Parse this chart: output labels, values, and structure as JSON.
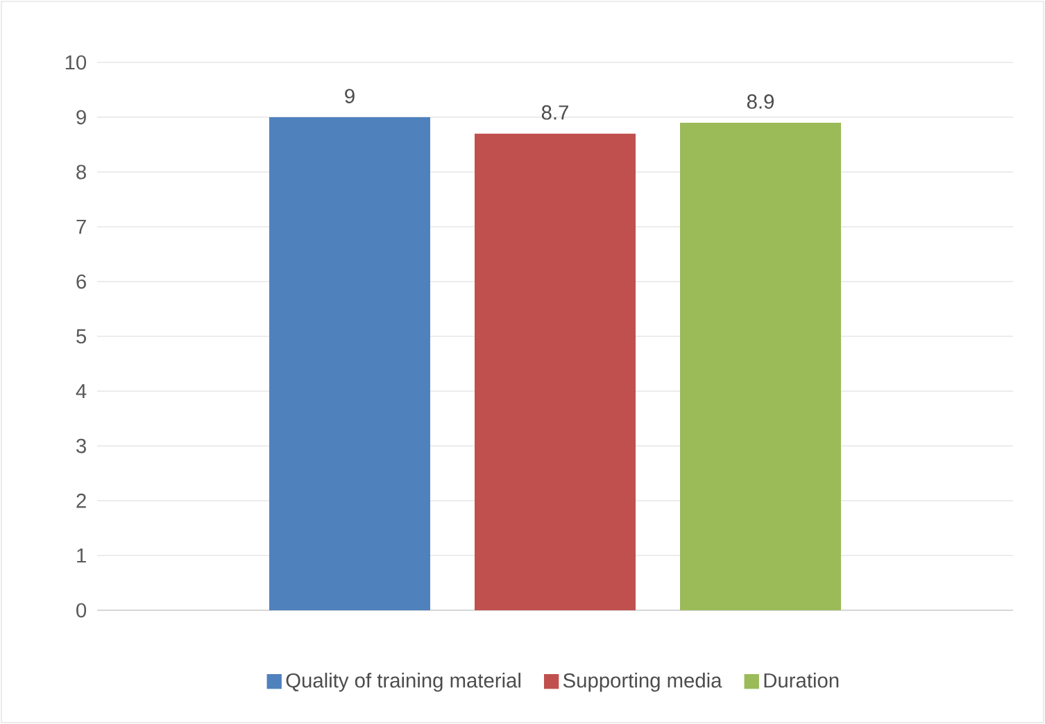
{
  "chart_data": {
    "type": "bar",
    "categories": [
      null
    ],
    "series": [
      {
        "name": "Quality of training material",
        "color": "#4f81bd",
        "values": [
          9
        ]
      },
      {
        "name": "Supporting media",
        "color": "#c0504d",
        "values": [
          8.7
        ]
      },
      {
        "name": "Duration",
        "color": "#9bbb59",
        "values": [
          8.9
        ]
      }
    ],
    "ylim": [
      0,
      10
    ],
    "yticks": [
      0,
      1,
      2,
      3,
      4,
      5,
      6,
      7,
      8,
      9,
      10
    ],
    "grid": "y",
    "legend": "bottom",
    "data_labels": true
  }
}
